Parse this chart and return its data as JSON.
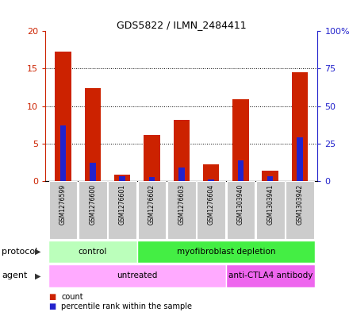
{
  "title": "GDS5822 / ILMN_2484411",
  "samples": [
    "GSM1276599",
    "GSM1276600",
    "GSM1276601",
    "GSM1276602",
    "GSM1276603",
    "GSM1276604",
    "GSM1303940",
    "GSM1303941",
    "GSM1303942"
  ],
  "counts": [
    17.3,
    12.4,
    0.8,
    6.1,
    8.2,
    2.2,
    10.9,
    1.4,
    14.5
  ],
  "percentiles": [
    37,
    12,
    3,
    2.5,
    9,
    1,
    14,
    3,
    29
  ],
  "ylim_left": [
    0,
    20
  ],
  "ylim_right": [
    0,
    100
  ],
  "yticks_left": [
    0,
    5,
    10,
    15,
    20
  ],
  "yticks_right": [
    0,
    25,
    50,
    75,
    100
  ],
  "ytick_labels_left": [
    "0",
    "5",
    "10",
    "15",
    "20"
  ],
  "ytick_labels_right": [
    "0",
    "25",
    "50",
    "75",
    "100%"
  ],
  "bar_color": "#cc2200",
  "percentile_color": "#2222cc",
  "bar_width": 0.55,
  "percentile_bar_width": 0.2,
  "protocol_groups": [
    {
      "label": "control",
      "start": 0,
      "end": 2,
      "color": "#bbffbb"
    },
    {
      "label": "myofibroblast depletion",
      "start": 3,
      "end": 8,
      "color": "#44ee44"
    }
  ],
  "agent_groups": [
    {
      "label": "untreated",
      "start": 0,
      "end": 5,
      "color": "#ffaaff"
    },
    {
      "label": "anti-CTLA4 antibody",
      "start": 6,
      "end": 8,
      "color": "#ee66ee"
    }
  ],
  "protocol_label": "protocol",
  "agent_label": "agent",
  "legend_count": "count",
  "legend_percentile": "percentile rank within the sample",
  "sample_box_color": "#cccccc",
  "plot_bg": "#ffffff"
}
